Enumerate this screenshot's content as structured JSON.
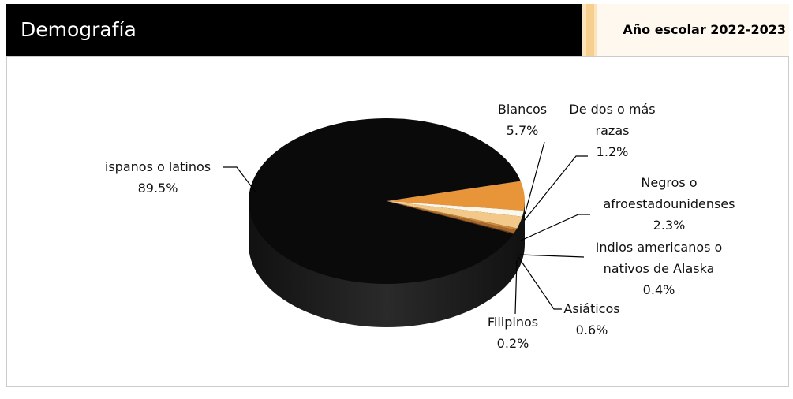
{
  "header": {
    "title": "Demografía",
    "school_year": "Año escolar 2022-2023"
  },
  "chart_data": {
    "type": "pie",
    "categories": [
      "Blancos",
      "De dos o más razas",
      "Negros o afroestadounidenses",
      "Indios americanos o nativos de Alaska",
      "Asiáticos",
      "Filipinos",
      "ispanos o latinos"
    ],
    "values": [
      5.7,
      1.2,
      2.3,
      0.4,
      0.6,
      0.2,
      89.5
    ],
    "value_labels": [
      "5.7%",
      "1.2%",
      "2.3%",
      "0.4%",
      "0.6%",
      "0.2%",
      "89.5%"
    ],
    "colors": [
      "#e8953a",
      "#fdf6ea",
      "#f3c98a",
      "#c98a3e",
      "#a8682c",
      "#5a3a1a",
      "#0a0a0a"
    ]
  }
}
